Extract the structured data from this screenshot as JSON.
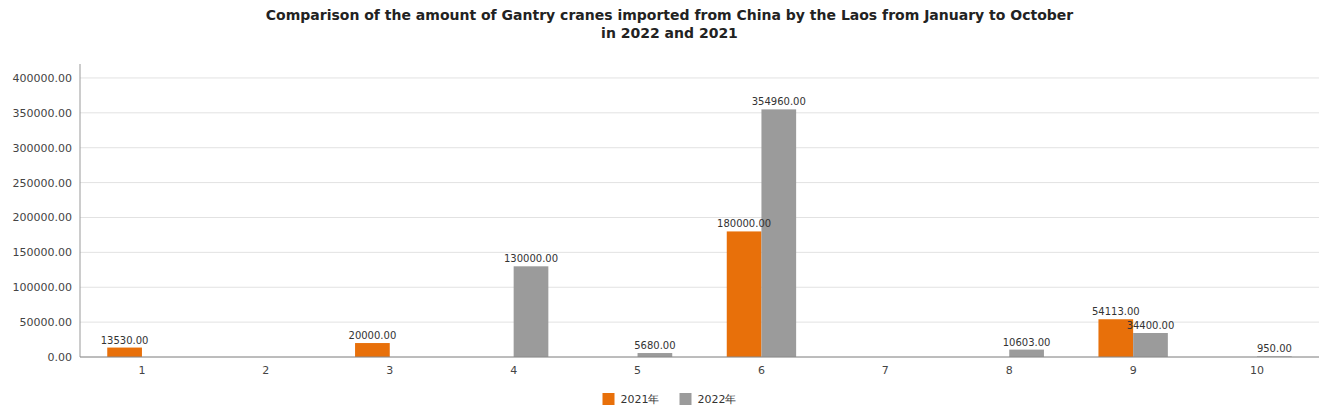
{
  "chart_data": {
    "type": "bar",
    "title": "Comparison of the amount of Gantry cranes imported from China by the Laos from January to October\nin 2022 and 2021",
    "categories": [
      "1",
      "2",
      "3",
      "4",
      "5",
      "6",
      "7",
      "8",
      "9",
      "10"
    ],
    "series": [
      {
        "name": "2021年",
        "color": "#E8700A",
        "values": [
          13530.0,
          0,
          20000.0,
          0,
          0,
          180000.0,
          0,
          0,
          54113.0,
          0
        ],
        "value_labels": [
          "13530.00",
          null,
          "20000.00",
          null,
          null,
          "180000.00",
          null,
          null,
          "54113.00",
          null
        ]
      },
      {
        "name": "2022年",
        "color": "#9B9B9B",
        "values": [
          0,
          0,
          0,
          130000.0,
          5680.0,
          354960.0,
          0,
          10603.0,
          34400.0,
          950.0
        ],
        "value_labels": [
          null,
          null,
          null,
          "130000.00",
          "5680.00",
          "354960.00",
          null,
          "10603.00",
          "34400.00",
          "950.00"
        ]
      }
    ],
    "ylim": [
      0,
      420000
    ],
    "yticks": [
      {
        "value": 0,
        "label": "0.00"
      },
      {
        "value": 50000,
        "label": "50000.00"
      },
      {
        "value": 100000,
        "label": "100000.00"
      },
      {
        "value": 150000,
        "label": "150000.00"
      },
      {
        "value": 200000,
        "label": "200000.00"
      },
      {
        "value": 250000,
        "label": "250000.00"
      },
      {
        "value": 300000,
        "label": "300000.00"
      },
      {
        "value": 350000,
        "label": "350000.00"
      },
      {
        "value": 400000,
        "label": "400000.00"
      }
    ],
    "grid": true,
    "legend": "bottom",
    "data_labels": true
  }
}
